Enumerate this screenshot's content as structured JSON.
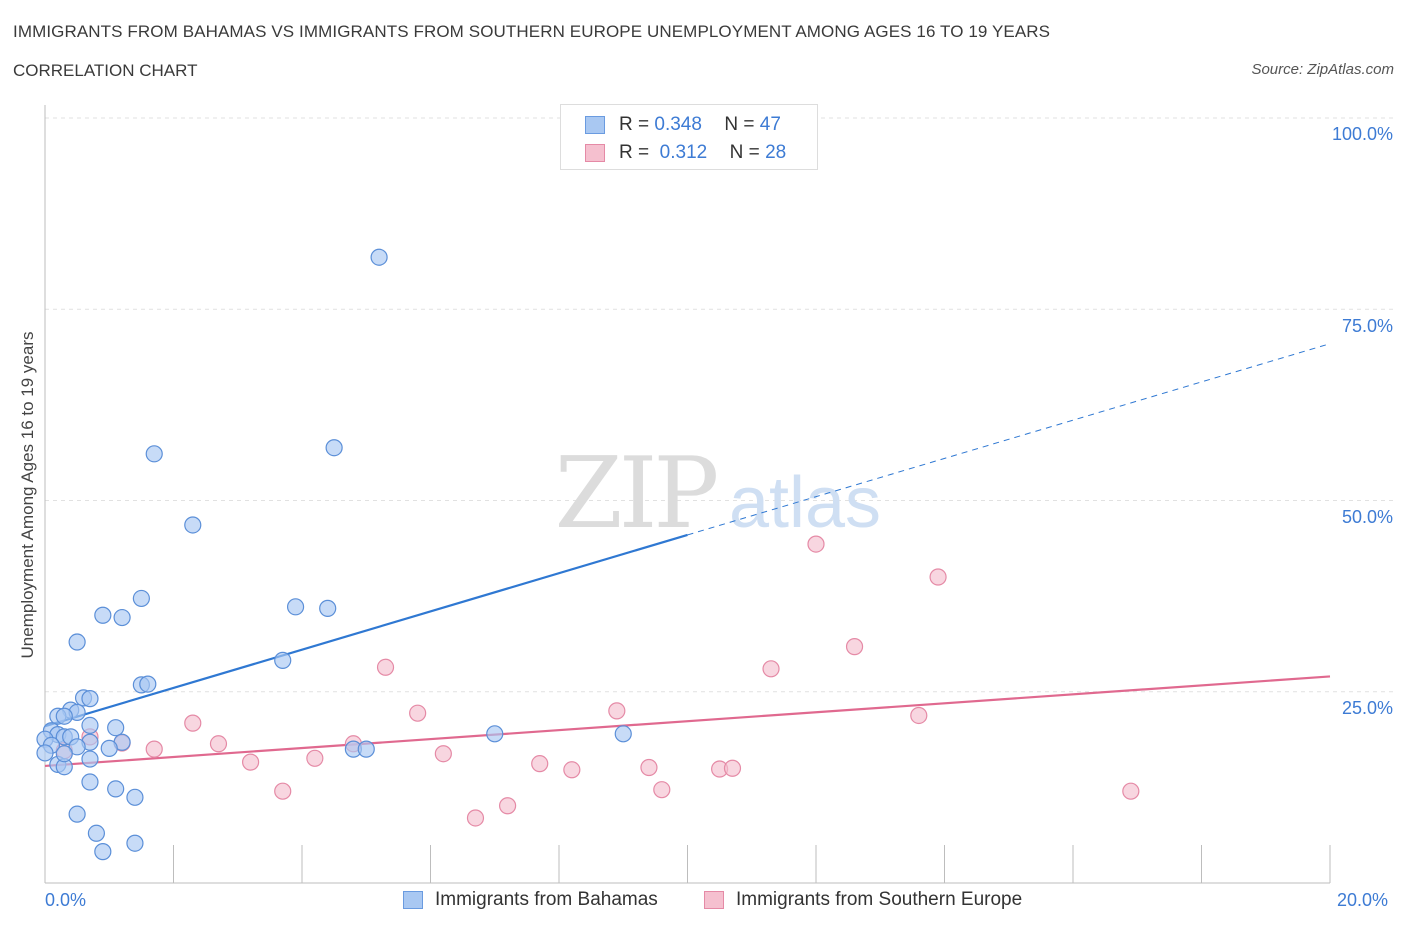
{
  "title": "IMMIGRANTS FROM BAHAMAS VS IMMIGRANTS FROM SOUTHERN EUROPE UNEMPLOYMENT AMONG AGES 16 TO 19 YEARS",
  "subtitle": "CORRELATION CHART",
  "source": "Source: ZipAtlas.com",
  "watermark": {
    "zip": "ZIP",
    "atlas": "atlas"
  },
  "legend_top": {
    "rows": [
      {
        "r_label": "R =",
        "r_value": "0.348",
        "n_label": "N =",
        "n_value": "47",
        "color": "#a9c8f2",
        "border": "#6a9be0"
      },
      {
        "r_label": "R =",
        "r_value": "0.312",
        "n_label": "N =",
        "n_value": "28",
        "color": "#f5c0cf",
        "border": "#e58aa6"
      }
    ]
  },
  "colors": {
    "blue_fill": "#a9c8f2",
    "blue_edge": "#5b8fd8",
    "blue_line": "#2f78d2",
    "pink_fill": "#f5c0cf",
    "pink_edge": "#e58aa6",
    "pink_line": "#e0698f",
    "tick_text": "#3d7bd4",
    "grid": "#e1e1e1"
  },
  "chart_data": {
    "type": "scatter",
    "title": "IMMIGRANTS FROM BAHAMAS VS IMMIGRANTS FROM SOUTHERN EUROPE UNEMPLOYMENT AMONG AGES 16 TO 19 YEARS",
    "subtitle": "CORRELATION CHART",
    "xlabel": "",
    "ylabel": "Unemployment Among Ages 16 to 19 years",
    "xlim": [
      0,
      20
    ],
    "ylim": [
      0,
      100
    ],
    "x_tick_labels": [
      "0.0%",
      "20.0%"
    ],
    "y_ticks": [
      25,
      50,
      75,
      100
    ],
    "y_tick_labels": [
      "25.0%",
      "50.0%",
      "75.0%",
      "100.0%"
    ],
    "grid": true,
    "legend_position": "top-center",
    "series": [
      {
        "name": "Immigrants from Bahamas",
        "R": 0.348,
        "N": 47,
        "trend": {
          "x0": 0,
          "y0": 20.5,
          "x1": 20,
          "y1": 70.5,
          "solid_until_x": 10
        },
        "points": [
          [
            5.2,
            81.8
          ],
          [
            1.7,
            56.1
          ],
          [
            4.5,
            56.9
          ],
          [
            2.3,
            46.8
          ],
          [
            1.5,
            37.2
          ],
          [
            0.9,
            35.0
          ],
          [
            1.2,
            34.7
          ],
          [
            3.9,
            36.1
          ],
          [
            4.4,
            35.9
          ],
          [
            0.5,
            31.5
          ],
          [
            3.7,
            29.1
          ],
          [
            1.5,
            25.9
          ],
          [
            1.6,
            26.0
          ],
          [
            0.6,
            24.2
          ],
          [
            0.7,
            24.1
          ],
          [
            0.4,
            22.6
          ],
          [
            0.5,
            22.3
          ],
          [
            0.2,
            21.8
          ],
          [
            0.3,
            21.8
          ],
          [
            0.7,
            20.6
          ],
          [
            1.1,
            20.3
          ],
          [
            0.1,
            19.9
          ],
          [
            0.2,
            19.4
          ],
          [
            0.3,
            19.1
          ],
          [
            0.4,
            19.1
          ],
          [
            0.0,
            18.8
          ],
          [
            0.1,
            18.0
          ],
          [
            0.7,
            18.4
          ],
          [
            1.2,
            18.4
          ],
          [
            0.5,
            17.8
          ],
          [
            1.0,
            17.6
          ],
          [
            4.8,
            17.5
          ],
          [
            5.0,
            17.5
          ],
          [
            0.0,
            17.0
          ],
          [
            0.7,
            16.2
          ],
          [
            0.2,
            15.5
          ],
          [
            0.3,
            15.2
          ],
          [
            7.0,
            19.5
          ],
          [
            9.0,
            19.5
          ],
          [
            0.7,
            13.2
          ],
          [
            1.1,
            12.3
          ],
          [
            1.4,
            11.2
          ],
          [
            0.5,
            9.0
          ],
          [
            0.8,
            6.5
          ],
          [
            0.9,
            4.1
          ],
          [
            1.4,
            5.2
          ],
          [
            0.3,
            16.9
          ]
        ]
      },
      {
        "name": "Immigrants from Southern Europe",
        "R": 0.312,
        "N": 28,
        "trend": {
          "x0": 0,
          "y0": 15.3,
          "x1": 20,
          "y1": 27.0
        },
        "points": [
          [
            12.0,
            44.3
          ],
          [
            13.9,
            40.0
          ],
          [
            12.6,
            30.9
          ],
          [
            11.3,
            28.0
          ],
          [
            5.3,
            28.2
          ],
          [
            13.6,
            21.9
          ],
          [
            5.8,
            22.2
          ],
          [
            8.9,
            22.5
          ],
          [
            2.3,
            20.9
          ],
          [
            0.7,
            19.1
          ],
          [
            1.2,
            18.3
          ],
          [
            2.7,
            18.2
          ],
          [
            4.8,
            18.2
          ],
          [
            1.7,
            17.5
          ],
          [
            0.3,
            17.3
          ],
          [
            6.2,
            16.9
          ],
          [
            3.2,
            15.8
          ],
          [
            4.2,
            16.3
          ],
          [
            7.7,
            15.6
          ],
          [
            8.2,
            14.8
          ],
          [
            9.4,
            15.1
          ],
          [
            10.5,
            14.9
          ],
          [
            10.7,
            15.0
          ],
          [
            3.7,
            12.0
          ],
          [
            7.2,
            10.1
          ],
          [
            6.7,
            8.5
          ],
          [
            9.6,
            12.2
          ],
          [
            16.9,
            12.0
          ]
        ]
      }
    ]
  }
}
